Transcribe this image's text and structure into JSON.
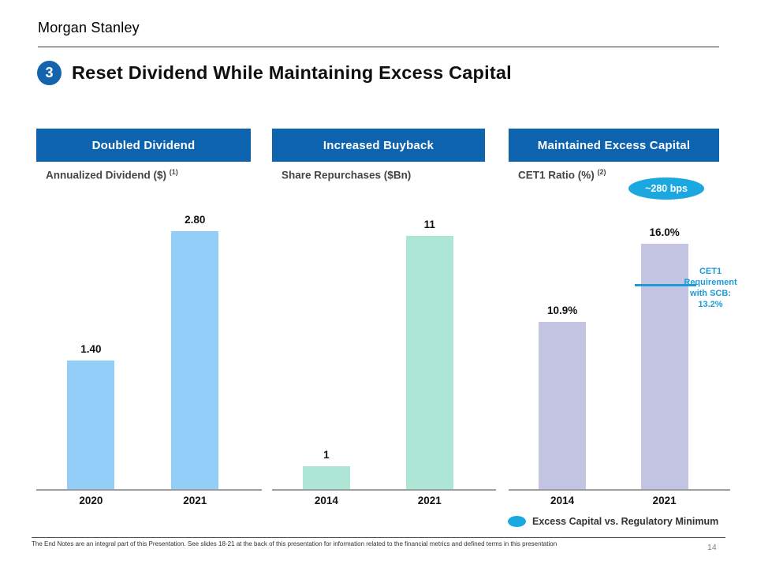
{
  "page": {
    "logo": "Morgan Stanley",
    "page_number": "14",
    "footer_note": "The End Notes are an integral part of this Presentation. See slides 18-21 at the back of this presentation for information related to the financial metrics and defined terms in this presentation"
  },
  "title": {
    "badge_number": "3",
    "text": "Reset Dividend While Maintaining Excess Capital"
  },
  "colors": {
    "header_blue": "#0E63AE",
    "accent_cyan": "#1BA7E0",
    "axis_gray": "#9e9e9e"
  },
  "legend": {
    "marker": "cyan-ellipse",
    "label": "Excess Capital vs. Regulatory Minimum"
  },
  "chart_data": [
    {
      "type": "bar",
      "panel": "Doubled Dividend",
      "subtitle": "Annualized Dividend ($)",
      "subtitle_superscript": "(1)",
      "categories": [
        "2020",
        "2021"
      ],
      "values": [
        1.4,
        2.8
      ],
      "labels": [
        "1.40",
        "2.80"
      ],
      "bar_color": "#93CEF8",
      "ylim": [
        0,
        3
      ]
    },
    {
      "type": "bar",
      "panel": "Increased Buyback",
      "subtitle": "Share Repurchases ($Bn)",
      "subtitle_superscript": "",
      "categories": [
        "2014",
        "2021"
      ],
      "values": [
        1,
        11
      ],
      "labels": [
        "1",
        "11"
      ],
      "bar_color": "#AEE6D5",
      "ylim": [
        0,
        12
      ]
    },
    {
      "type": "bar",
      "panel": "Maintained Excess Capital",
      "subtitle": "CET1 Ratio (%)",
      "subtitle_superscript": "(2)",
      "categories": [
        "2014",
        "2021"
      ],
      "values": [
        10.9,
        16.0
      ],
      "labels": [
        "10.9%",
        "16.0%"
      ],
      "bar_color": "#C3C4E2",
      "ylim": [
        0,
        18
      ],
      "annotations": {
        "badge": "~280 bps",
        "reference_line": {
          "value": 13.2,
          "label": "CET1\nRequirement\nwith SCB:\n13.2%"
        }
      }
    }
  ]
}
